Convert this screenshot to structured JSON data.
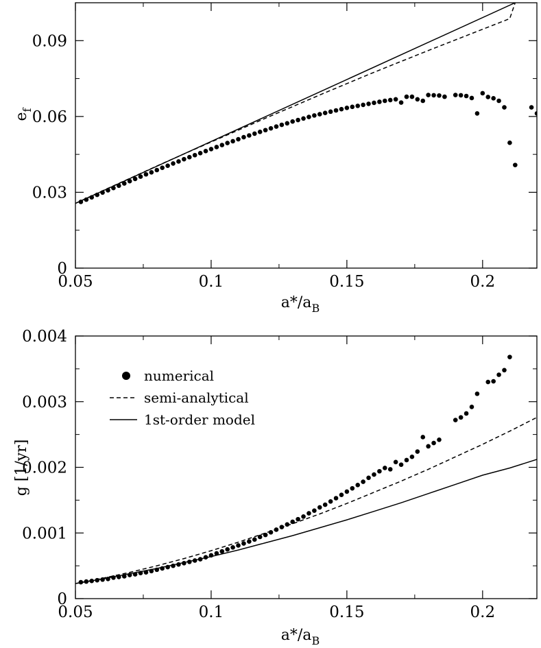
{
  "chart_data": [
    {
      "type": "scatter",
      "title": "",
      "xlabel": {
        "base": "a*/a",
        "sub": "B"
      },
      "ylabel": {
        "base": "e",
        "sub": "f"
      },
      "xlim": [
        0.05,
        0.22
      ],
      "ylim": [
        0,
        0.105
      ],
      "xticks": [
        0.05,
        0.1,
        0.15,
        0.2
      ],
      "xtick_labels": [
        "0.05",
        "0.1",
        "0.15",
        "0.2"
      ],
      "yticks": [
        0,
        0.03,
        0.06,
        0.09
      ],
      "ytick_labels": [
        "0",
        "0.03",
        "0.06",
        "0.09"
      ],
      "series": [
        {
          "name": "numerical",
          "style": "dots",
          "x": [
            0.052,
            0.054,
            0.056,
            0.058,
            0.06,
            0.062,
            0.064,
            0.066,
            0.068,
            0.07,
            0.072,
            0.074,
            0.076,
            0.078,
            0.08,
            0.082,
            0.084,
            0.086,
            0.088,
            0.09,
            0.092,
            0.094,
            0.096,
            0.098,
            0.1,
            0.102,
            0.104,
            0.106,
            0.108,
            0.11,
            0.112,
            0.114,
            0.116,
            0.118,
            0.12,
            0.122,
            0.124,
            0.126,
            0.128,
            0.13,
            0.132,
            0.134,
            0.136,
            0.138,
            0.14,
            0.142,
            0.144,
            0.146,
            0.148,
            0.15,
            0.152,
            0.154,
            0.156,
            0.158,
            0.16,
            0.162,
            0.164,
            0.166,
            0.168,
            0.17,
            0.172,
            0.174,
            0.176,
            0.178,
            0.18,
            0.182,
            0.184,
            0.186,
            0.19,
            0.192,
            0.194,
            0.196,
            0.198,
            0.2,
            0.202,
            0.204,
            0.206,
            0.208,
            0.21,
            0.212,
            0.218,
            0.22
          ],
          "y": [
            0.0262,
            0.0271,
            0.028,
            0.029,
            0.0299,
            0.0308,
            0.0317,
            0.0326,
            0.0335,
            0.0344,
            0.0353,
            0.0362,
            0.0371,
            0.0379,
            0.0388,
            0.0397,
            0.0405,
            0.0414,
            0.0422,
            0.0431,
            0.0439,
            0.0447,
            0.0455,
            0.0463,
            0.0471,
            0.0479,
            0.0487,
            0.0495,
            0.0502,
            0.051,
            0.0518,
            0.0525,
            0.0532,
            0.0539,
            0.0546,
            0.0553,
            0.056,
            0.0567,
            0.0573,
            0.058,
            0.0586,
            0.0592,
            0.0598,
            0.0604,
            0.0609,
            0.0614,
            0.0619,
            0.0624,
            0.0629,
            0.0634,
            0.0638,
            0.0642,
            0.0646,
            0.065,
            0.0654,
            0.0658,
            0.0662,
            0.0665,
            0.0668,
            0.0655,
            0.0678,
            0.0678,
            0.0668,
            0.0662,
            0.0685,
            0.0684,
            0.0683,
            0.0678,
            0.0685,
            0.0684,
            0.0681,
            0.0673,
            0.0612,
            0.0692,
            0.0677,
            0.0672,
            0.0662,
            0.0636,
            0.0496,
            0.0408,
            0.0636,
            0.0612
          ]
        },
        {
          "name": "semi-analytical",
          "style": "dashed",
          "x": [
            0.05,
            0.06,
            0.07,
            0.08,
            0.09,
            0.1,
            0.11,
            0.12,
            0.13,
            0.14,
            0.15,
            0.16,
            0.17,
            0.18,
            0.19,
            0.2,
            0.21,
            0.212
          ],
          "y": [
            0.0256,
            0.0306,
            0.0355,
            0.0404,
            0.0452,
            0.0499,
            0.0546,
            0.0593,
            0.0639,
            0.0685,
            0.073,
            0.0775,
            0.0818,
            0.0861,
            0.0903,
            0.0945,
            0.0987,
            0.105
          ]
        },
        {
          "name": "1st-order model",
          "style": "solid",
          "x": [
            0.05,
            0.212
          ],
          "y": [
            0.0256,
            0.105
          ]
        }
      ]
    },
    {
      "type": "scatter",
      "title": "",
      "xlabel": {
        "base": "a*/a",
        "sub": "B"
      },
      "ylabel": {
        "base": "g  [1/yr]",
        "sub": ""
      },
      "xlim": [
        0.05,
        0.22
      ],
      "ylim": [
        0,
        0.004
      ],
      "xticks": [
        0.05,
        0.1,
        0.15,
        0.2
      ],
      "xtick_labels": [
        "0.05",
        "0.1",
        "0.15",
        "0.2"
      ],
      "yticks": [
        0,
        0.001,
        0.002,
        0.003,
        0.004
      ],
      "ytick_labels": [
        "0",
        "0.001",
        "0.002",
        "0.003",
        "0.004"
      ],
      "legend": {
        "position": "top-left",
        "entries": [
          {
            "label": "numerical",
            "style": "dots"
          },
          {
            "label": "semi-analytical",
            "style": "dashed"
          },
          {
            "label": "1st-order model",
            "style": "solid"
          }
        ]
      },
      "series": [
        {
          "name": "numerical",
          "style": "dots",
          "x": [
            0.052,
            0.054,
            0.056,
            0.058,
            0.06,
            0.062,
            0.064,
            0.066,
            0.068,
            0.07,
            0.072,
            0.074,
            0.076,
            0.078,
            0.08,
            0.082,
            0.084,
            0.086,
            0.088,
            0.09,
            0.092,
            0.094,
            0.096,
            0.098,
            0.1,
            0.102,
            0.104,
            0.106,
            0.108,
            0.11,
            0.112,
            0.114,
            0.116,
            0.118,
            0.12,
            0.122,
            0.124,
            0.126,
            0.128,
            0.13,
            0.132,
            0.134,
            0.136,
            0.138,
            0.14,
            0.142,
            0.144,
            0.146,
            0.148,
            0.15,
            0.152,
            0.154,
            0.156,
            0.158,
            0.16,
            0.162,
            0.164,
            0.166,
            0.168,
            0.17,
            0.172,
            0.174,
            0.176,
            0.178,
            0.18,
            0.182,
            0.184,
            0.19,
            0.192,
            0.194,
            0.196,
            0.198,
            0.202,
            0.204,
            0.206,
            0.208,
            0.21
          ],
          "y": [
            0.00025,
            0.00026,
            0.00027,
            0.00028,
            0.00029,
            0.0003,
            0.00032,
            0.00033,
            0.00034,
            0.00036,
            0.00037,
            0.00039,
            0.0004,
            0.00042,
            0.00044,
            0.00046,
            0.00048,
            0.0005,
            0.00052,
            0.00054,
            0.00056,
            0.00058,
            0.0006,
            0.00063,
            0.00066,
            0.00069,
            0.00072,
            0.00075,
            0.00078,
            0.00081,
            0.00084,
            0.00087,
            0.0009,
            0.00094,
            0.00097,
            0.00101,
            0.00105,
            0.00109,
            0.00113,
            0.00117,
            0.00121,
            0.00125,
            0.0013,
            0.00134,
            0.00139,
            0.00143,
            0.00148,
            0.00153,
            0.00158,
            0.00163,
            0.00168,
            0.00173,
            0.00178,
            0.00184,
            0.00189,
            0.00194,
            0.00199,
            0.00197,
            0.00208,
            0.00204,
            0.00211,
            0.00216,
            0.00224,
            0.00246,
            0.00232,
            0.00237,
            0.00242,
            0.00272,
            0.00276,
            0.00282,
            0.00292,
            0.00312,
            0.0033,
            0.00331,
            0.00341,
            0.00348,
            0.00368
          ]
        },
        {
          "name": "semi-analytical",
          "style": "dashed",
          "x": [
            0.05,
            0.06,
            0.07,
            0.08,
            0.09,
            0.1,
            0.11,
            0.12,
            0.13,
            0.14,
            0.15,
            0.16,
            0.17,
            0.18,
            0.19,
            0.2,
            0.21,
            0.22
          ],
          "y": [
            0.00023,
            0.00031,
            0.0004,
            0.0005,
            0.00061,
            0.00073,
            0.00086,
            0.001,
            0.00114,
            0.00129,
            0.00145,
            0.00162,
            0.00179,
            0.00197,
            0.00216,
            0.00235,
            0.00255,
            0.00276
          ]
        },
        {
          "name": "1st-order model",
          "style": "solid",
          "x": [
            0.05,
            0.06,
            0.07,
            0.08,
            0.09,
            0.1,
            0.11,
            0.12,
            0.13,
            0.14,
            0.15,
            0.16,
            0.17,
            0.18,
            0.19,
            0.2,
            0.21,
            0.22
          ],
          "y": [
            0.00023,
            0.0003,
            0.00038,
            0.00046,
            0.00055,
            0.00064,
            0.00074,
            0.00085,
            0.00096,
            0.00108,
            0.0012,
            0.00133,
            0.00146,
            0.0016,
            0.00174,
            0.00188,
            0.00199,
            0.00212
          ]
        }
      ]
    }
  ]
}
